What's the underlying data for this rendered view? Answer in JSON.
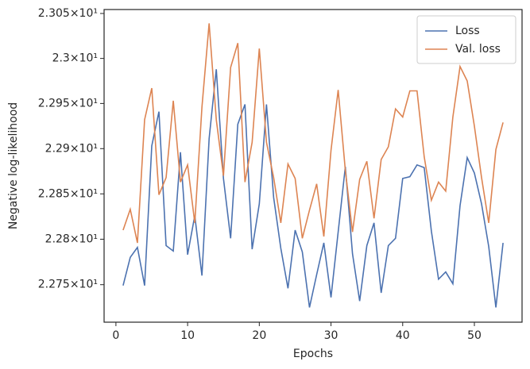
{
  "chart_data": {
    "type": "line",
    "x_label": "Epochs",
    "y_label": "Negative log-likelihood",
    "x": [
      1,
      2,
      3,
      4,
      5,
      6,
      7,
      8,
      9,
      10,
      11,
      12,
      13,
      14,
      15,
      16,
      17,
      18,
      19,
      20,
      21,
      22,
      23,
      24,
      25,
      26,
      27,
      28,
      29,
      30,
      31,
      32,
      33,
      34,
      35,
      36,
      37,
      38,
      39,
      40,
      41,
      42,
      43,
      44,
      45,
      46,
      47,
      48,
      49,
      50,
      51,
      52,
      53,
      54
    ],
    "series": [
      {
        "name": "Loss",
        "color": "#4c72b0",
        "values": [
          22.749,
          22.78,
          22.791,
          22.749,
          22.903,
          22.941,
          22.793,
          22.787,
          22.896,
          22.783,
          22.826,
          22.76,
          22.911,
          22.988,
          22.867,
          22.801,
          22.927,
          22.949,
          22.789,
          22.839,
          22.949,
          22.846,
          22.79,
          22.746,
          22.81,
          22.786,
          22.725,
          22.761,
          22.796,
          22.736,
          22.808,
          22.88,
          22.784,
          22.732,
          22.793,
          22.818,
          22.741,
          22.793,
          22.801,
          22.867,
          22.869,
          22.882,
          22.879,
          22.809,
          22.756,
          22.764,
          22.751,
          22.837,
          22.89,
          22.873,
          22.839,
          22.792,
          22.725,
          22.796
        ]
      },
      {
        "name": "Val. loss",
        "color": "#dd8452",
        "values": [
          22.81,
          22.833,
          22.796,
          22.932,
          22.967,
          22.849,
          22.868,
          22.953,
          22.863,
          22.882,
          22.818,
          22.946,
          23.039,
          22.932,
          22.87,
          22.99,
          23.017,
          22.863,
          22.907,
          23.011,
          22.907,
          22.868,
          22.818,
          22.883,
          22.867,
          22.801,
          22.832,
          22.861,
          22.803,
          22.898,
          22.965,
          22.876,
          22.808,
          22.866,
          22.886,
          22.823,
          22.888,
          22.902,
          22.944,
          22.935,
          22.964,
          22.964,
          22.891,
          22.843,
          22.863,
          22.853,
          22.935,
          22.991,
          22.975,
          22.925,
          22.868,
          22.818,
          22.899,
          22.929
        ]
      }
    ],
    "xlim": [
      -1.65,
      56.65
    ],
    "xticks": [
      0,
      10,
      20,
      30,
      40,
      50
    ],
    "ylim": [
      22.7088,
      23.0544
    ],
    "yscale": "log",
    "yticks": [
      {
        "value": 22.75,
        "label": "2.275×10¹"
      },
      {
        "value": 22.8,
        "label": "2.28×10¹"
      },
      {
        "value": 22.85,
        "label": "2.285×10¹"
      },
      {
        "value": 22.9,
        "label": "2.29×10¹"
      },
      {
        "value": 22.95,
        "label": "2.295×10¹"
      },
      {
        "value": 23.0,
        "label": "2.3×10¹"
      },
      {
        "value": 23.05,
        "label": "2.305×10¹"
      }
    ],
    "grid": false,
    "legend": "upper right"
  }
}
